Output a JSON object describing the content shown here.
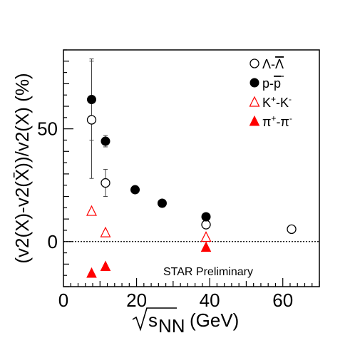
{
  "chart_data": {
    "type": "scatter",
    "title": "",
    "xlabel": "√s_NN (GeV)",
    "xlabel_parts": {
      "root": "s",
      "sub": "NN",
      "unit": "(GeV)"
    },
    "ylabel": "(v2(X)-v2(X̄))/v2(X) (%)",
    "xlim": [
      0,
      70
    ],
    "ylim": [
      -20,
      85
    ],
    "x_ticks": [
      0,
      20,
      40,
      60
    ],
    "y_ticks": [
      0,
      50
    ],
    "x_tick_labels": [
      "0",
      "20",
      "40",
      "60"
    ],
    "y_tick_labels": [
      "0",
      "50"
    ],
    "reference_line": {
      "y": 0,
      "style": "dotted"
    },
    "annotation": "STAR Preliminary",
    "legend_position": "top-right",
    "series": [
      {
        "name": "Λ-Λ̄",
        "label_main": "Λ-",
        "label_bar": "Λ",
        "marker": "open-circle",
        "color": "#000000",
        "points": [
          {
            "x": 7.7,
            "y": 54,
            "err": 26
          },
          {
            "x": 11.5,
            "y": 26,
            "err": 6
          },
          {
            "x": 39,
            "y": 7.5,
            "err": 0
          },
          {
            "x": 62.4,
            "y": 5.5,
            "err": 0
          }
        ]
      },
      {
        "name": "p-p̄",
        "label_main": "p-",
        "label_bar": "p",
        "marker": "filled-circle",
        "color": "#000000",
        "points": [
          {
            "x": 7.7,
            "y": 63,
            "err": 18
          },
          {
            "x": 11.5,
            "y": 44.5,
            "err": 2.5
          },
          {
            "x": 19.6,
            "y": 23,
            "err": 0
          },
          {
            "x": 27,
            "y": 17,
            "err": 0
          },
          {
            "x": 39,
            "y": 11,
            "err": 0
          }
        ]
      },
      {
        "name": "K+-K-",
        "label_main": "K",
        "label_sup1": "+",
        "label_mid": "-K",
        "label_sup2": "-",
        "marker": "open-triangle",
        "color": "#ff0000",
        "points": [
          {
            "x": 7.7,
            "y": 13.5,
            "err": 0
          },
          {
            "x": 11.5,
            "y": 4,
            "err": 0
          },
          {
            "x": 39,
            "y": 2,
            "err": 0
          }
        ]
      },
      {
        "name": "π+-π-",
        "label_main": "π",
        "label_sup1": "+",
        "label_mid": "-π",
        "label_sup2": "-",
        "marker": "filled-triangle",
        "color": "#ff0000",
        "points": [
          {
            "x": 7.7,
            "y": -14,
            "err": 0
          },
          {
            "x": 11.5,
            "y": -11,
            "err": 0
          },
          {
            "x": 39,
            "y": -2.5,
            "err": 0
          }
        ]
      }
    ]
  }
}
